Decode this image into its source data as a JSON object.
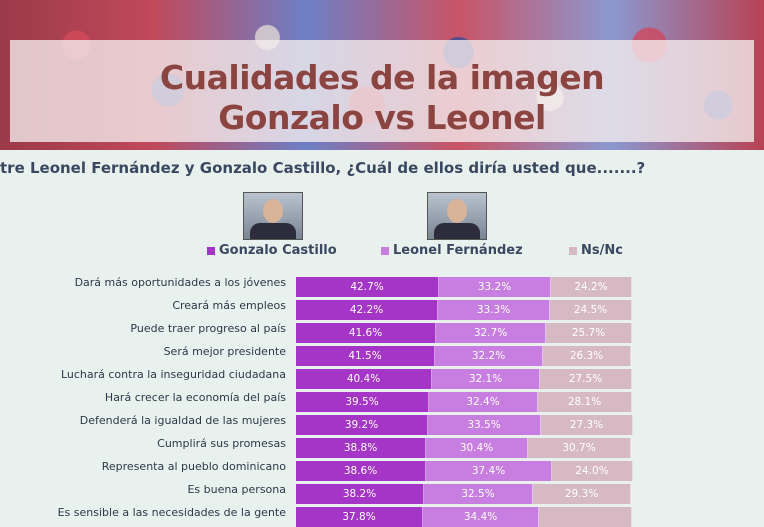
{
  "slide": {
    "title_line1": "Cualidades de la imagen",
    "title_line2": "Gonzalo vs Leonel",
    "question": "tre Leonel Fernández y Gonzalo Castillo, ¿Cuál de ellos diría usted que.......?"
  },
  "chart_data": {
    "type": "bar",
    "orientation": "horizontal-stacked",
    "legend_placement": "top",
    "categories": [
      "Dará más oportunidades a los jóvenes",
      "Creará más empleos",
      "Puede traer progreso al país",
      "Será mejor presidente",
      "Luchará contra la inseguridad ciudadana",
      "Hará crecer la economía del país",
      "Defenderá la igualdad de las mujeres",
      "Cumplirá sus promesas",
      "Representa al pueblo dominicano",
      "Es buena persona",
      "Es sensible a las necesidades de la gente"
    ],
    "series": [
      {
        "name": "Gonzalo Castillo",
        "color": "#a535c7",
        "values": [
          42.7,
          42.2,
          41.6,
          41.5,
          40.4,
          39.5,
          39.2,
          38.8,
          38.6,
          38.2,
          37.8
        ],
        "labels": [
          "42.7%",
          "42.2%",
          "41.6%",
          "41.5%",
          "40.4%",
          "39.5%",
          "39.2%",
          "38.8%",
          "38.6%",
          "38.2%",
          "37.8%"
        ]
      },
      {
        "name": "Leonel Fernández",
        "color": "#c77ee0",
        "values": [
          33.2,
          33.3,
          32.7,
          32.2,
          32.1,
          32.4,
          33.5,
          30.4,
          37.4,
          32.5,
          34.4
        ],
        "labels": [
          "33.2%",
          "33.3%",
          "32.7%",
          "32.2%",
          "32.1%",
          "32.4%",
          "33.5%",
          "30.4%",
          "37.4%",
          "32.5%",
          "34.4%"
        ]
      },
      {
        "name": "Ns/Nc",
        "color": "#d7b9c3",
        "values": [
          24.2,
          24.5,
          25.7,
          26.3,
          27.5,
          28.1,
          27.3,
          30.7,
          24.0,
          29.3,
          27.8
        ],
        "labels": [
          "24.2%",
          "24.5%",
          "25.7%",
          "26.3%",
          "27.5%",
          "28.1%",
          "27.3%",
          "30.7%",
          "24.0%",
          "29.3%",
          ""
        ]
      }
    ]
  }
}
